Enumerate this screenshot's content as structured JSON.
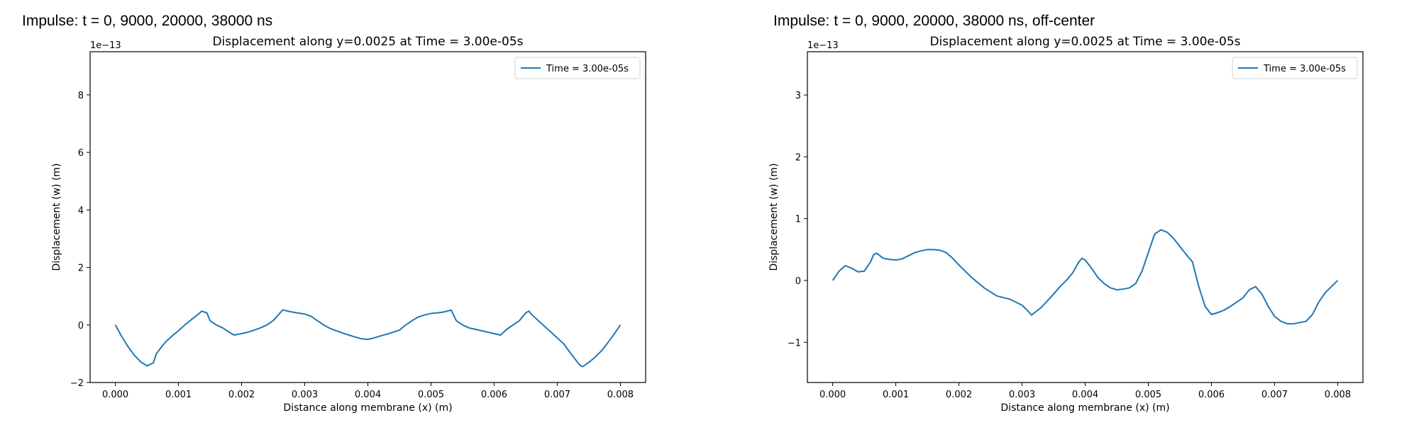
{
  "headings": [
    "Impulse: t = 0, 9000, 20000, 38000 ns",
    "Impulse: t = 0, 9000, 20000, 38000 ns, off-center"
  ],
  "chart_data": [
    {
      "type": "line",
      "title": "Displacement along y=0.0025 at Time = 3.00e-05s",
      "xlabel": "Distance along membrane (x) (m)",
      "ylabel": "Displacement (w) (m)",
      "offset_label": "1e−13",
      "xlim": [
        -0.0004,
        0.0084
      ],
      "ylim": [
        -2.0,
        9.5
      ],
      "xticks": [
        0.0,
        0.001,
        0.002,
        0.003,
        0.004,
        0.005,
        0.006,
        0.007,
        0.008
      ],
      "xtick_labels": [
        "0.000",
        "0.001",
        "0.002",
        "0.003",
        "0.004",
        "0.005",
        "0.006",
        "0.007",
        "0.008"
      ],
      "yticks": [
        -2,
        0,
        2,
        4,
        6,
        8
      ],
      "ytick_labels": [
        "−2",
        "0",
        "2",
        "4",
        "6",
        "8"
      ],
      "grid": false,
      "legend": "top-right",
      "series": [
        {
          "name": "Time = 3.00e-05s",
          "color": "#1f77b4",
          "x": [
            0.0,
            0.0001,
            0.0002,
            0.0003,
            0.0004,
            0.0005,
            0.0006,
            0.00065,
            0.0007,
            0.0008,
            0.0009,
            0.001,
            0.0011,
            0.0012,
            0.0013,
            0.00137,
            0.00145,
            0.0015,
            0.0016,
            0.0017,
            0.0018,
            0.00188,
            0.002,
            0.0021,
            0.0022,
            0.0023,
            0.0024,
            0.0025,
            0.00265,
            0.0028,
            0.003,
            0.0031,
            0.0032,
            0.0033,
            0.0034,
            0.0035,
            0.0036,
            0.0037,
            0.0038,
            0.0039,
            0.004,
            0.0041,
            0.0042,
            0.0043,
            0.0044,
            0.0045,
            0.0046,
            0.0047,
            0.0048,
            0.0049,
            0.005,
            0.0051,
            0.0052,
            0.00532,
            0.0054,
            0.0055,
            0.0056,
            0.0057,
            0.0058,
            0.0059,
            0.006,
            0.0061,
            0.0062,
            0.0063,
            0.0064,
            0.0065,
            0.00655,
            0.0066,
            0.0067,
            0.0068,
            0.0069,
            0.007,
            0.0071,
            0.0072,
            0.00735,
            0.0074,
            0.0075,
            0.0076,
            0.0077,
            0.0078,
            0.0079,
            0.008
          ],
          "y": [
            0.0,
            -0.4,
            -0.75,
            -1.05,
            -1.28,
            -1.42,
            -1.32,
            -1.0,
            -0.85,
            -0.58,
            -0.38,
            -0.2,
            0.0,
            0.18,
            0.35,
            0.48,
            0.42,
            0.15,
            0.0,
            -0.1,
            -0.25,
            -0.35,
            -0.3,
            -0.25,
            -0.18,
            -0.1,
            0.0,
            0.15,
            0.52,
            0.45,
            0.38,
            0.3,
            0.15,
            0.0,
            -0.12,
            -0.2,
            -0.28,
            -0.35,
            -0.42,
            -0.48,
            -0.5,
            -0.45,
            -0.38,
            -0.32,
            -0.25,
            -0.18,
            0.0,
            0.15,
            0.28,
            0.35,
            0.4,
            0.42,
            0.45,
            0.52,
            0.15,
            0.0,
            -0.1,
            -0.15,
            -0.2,
            -0.25,
            -0.3,
            -0.35,
            -0.15,
            0.0,
            0.15,
            0.42,
            0.48,
            0.35,
            0.15,
            -0.05,
            -0.25,
            -0.45,
            -0.65,
            -0.95,
            -1.38,
            -1.45,
            -1.3,
            -1.12,
            -0.9,
            -0.62,
            -0.32,
            0.0
          ]
        }
      ]
    },
    {
      "type": "line",
      "title": "Displacement along y=0.0025 at Time = 3.00e-05s",
      "xlabel": "Distance along membrane (x) (m)",
      "ylabel": "Displacement (w) (m)",
      "offset_label": "1e−13",
      "xlim": [
        -0.0004,
        0.0084
      ],
      "ylim": [
        -1.65,
        3.7
      ],
      "xticks": [
        0.0,
        0.001,
        0.002,
        0.003,
        0.004,
        0.005,
        0.006,
        0.007,
        0.008
      ],
      "xtick_labels": [
        "0.000",
        "0.001",
        "0.002",
        "0.003",
        "0.004",
        "0.005",
        "0.006",
        "0.007",
        "0.008"
      ],
      "yticks": [
        -1,
        0,
        1,
        2,
        3
      ],
      "ytick_labels": [
        "−1",
        "0",
        "1",
        "2",
        "3"
      ],
      "grid": false,
      "legend": "top-right",
      "series": [
        {
          "name": "Time = 3.00e-05s",
          "color": "#1f77b4",
          "x": [
            0.0,
            0.0001,
            0.0002,
            0.0003,
            0.0004,
            0.0005,
            0.0006,
            0.00065,
            0.0007,
            0.0008,
            0.0009,
            0.001,
            0.0011,
            0.0012,
            0.0013,
            0.0014,
            0.0015,
            0.0016,
            0.0017,
            0.0018,
            0.0019,
            0.002,
            0.0022,
            0.0024,
            0.0026,
            0.0028,
            0.003,
            0.0031,
            0.00315,
            0.0032,
            0.0033,
            0.0034,
            0.0035,
            0.0036,
            0.0037,
            0.0038,
            0.0039,
            0.00395,
            0.004,
            0.0041,
            0.0042,
            0.0043,
            0.0044,
            0.0045,
            0.0046,
            0.0047,
            0.0048,
            0.0049,
            0.005,
            0.0051,
            0.0052,
            0.0053,
            0.0054,
            0.0055,
            0.0056,
            0.0057,
            0.0058,
            0.0059,
            0.006,
            0.0061,
            0.0062,
            0.0063,
            0.0064,
            0.0065,
            0.0066,
            0.0067,
            0.0068,
            0.0069,
            0.007,
            0.0071,
            0.0072,
            0.0073,
            0.0074,
            0.0075,
            0.0076,
            0.0077,
            0.0078,
            0.0079,
            0.008
          ],
          "y": [
            0.0,
            0.15,
            0.24,
            0.2,
            0.14,
            0.15,
            0.3,
            0.42,
            0.44,
            0.36,
            0.34,
            0.33,
            0.35,
            0.4,
            0.45,
            0.48,
            0.5,
            0.5,
            0.49,
            0.45,
            0.36,
            0.25,
            0.05,
            -0.12,
            -0.25,
            -0.3,
            -0.4,
            -0.5,
            -0.56,
            -0.52,
            -0.44,
            -0.33,
            -0.22,
            -0.1,
            0.0,
            0.12,
            0.3,
            0.36,
            0.33,
            0.2,
            0.05,
            -0.05,
            -0.12,
            -0.15,
            -0.14,
            -0.12,
            -0.05,
            0.15,
            0.45,
            0.75,
            0.82,
            0.78,
            0.68,
            0.55,
            0.42,
            0.3,
            -0.1,
            -0.42,
            -0.55,
            -0.52,
            -0.48,
            -0.42,
            -0.35,
            -0.28,
            -0.15,
            -0.1,
            -0.22,
            -0.42,
            -0.58,
            -0.66,
            -0.7,
            -0.7,
            -0.68,
            -0.66,
            -0.55,
            -0.35,
            -0.2,
            -0.1,
            0.0
          ]
        }
      ]
    }
  ]
}
